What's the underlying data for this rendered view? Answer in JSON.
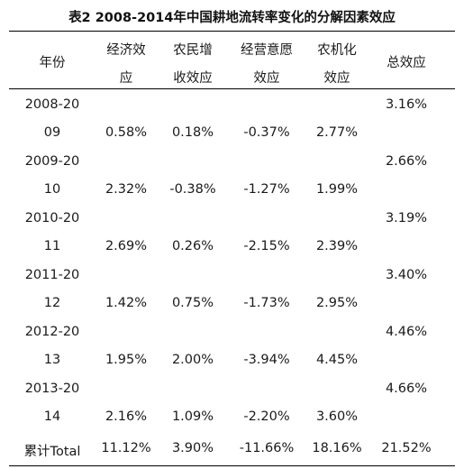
{
  "caption": "表2  2008-2014年中国耕地流转率变化的分解因素效应",
  "headers": {
    "year": "年份",
    "econ": [
      "经济效",
      "应"
    ],
    "farmer": [
      "农民增",
      "收效应"
    ],
    "will": [
      "经营意愿",
      "效应"
    ],
    "mech": [
      "农机化",
      "效应"
    ],
    "total": "总效应"
  },
  "rows": [
    {
      "year_top": "2008-20",
      "year_bottom": "09",
      "econ": "0.58%",
      "farmer": "0.18%",
      "will": "-0.37%",
      "mech": "2.77%",
      "total": "3.16%"
    },
    {
      "year_top": "2009-20",
      "year_bottom": "10",
      "econ": "2.32%",
      "farmer": "-0.38%",
      "will": "-1.27%",
      "mech": "1.99%",
      "total": "2.66%"
    },
    {
      "year_top": "2010-20",
      "year_bottom": "11",
      "econ": "2.69%",
      "farmer": "0.26%",
      "will": "-2.15%",
      "mech": "2.39%",
      "total": "3.19%"
    },
    {
      "year_top": "2011-20",
      "year_bottom": "12",
      "econ": "1.42%",
      "farmer": "0.75%",
      "will": "-1.73%",
      "mech": "2.95%",
      "total": "3.40%"
    },
    {
      "year_top": "2012-20",
      "year_bottom": "13",
      "econ": "1.95%",
      "farmer": "2.00%",
      "will": "-3.94%",
      "mech": "4.45%",
      "total": "4.46%"
    },
    {
      "year_top": "2013-20",
      "year_bottom": "14",
      "econ": "2.16%",
      "farmer": "1.09%",
      "will": "-2.20%",
      "mech": "3.60%",
      "total": "4.66%"
    }
  ],
  "summary": {
    "label": "累计Total",
    "econ": "11.12%",
    "farmer": "3.90%",
    "will": "-11.66%",
    "mech": "18.16%",
    "total": "21.52%"
  }
}
